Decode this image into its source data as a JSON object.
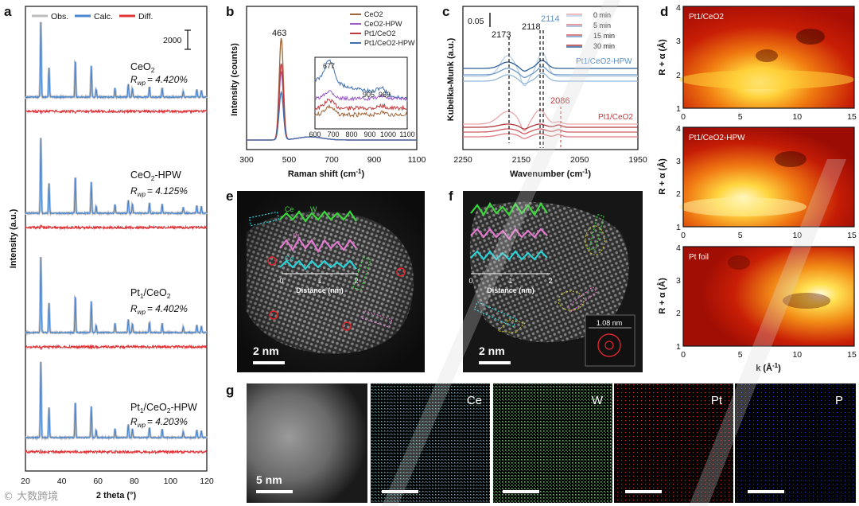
{
  "panels": {
    "a": {
      "label": "a",
      "legend": [
        "Obs.",
        "Calc.",
        "Diff."
      ],
      "scale": "2000",
      "ylabel": "Intensity (a.u.)",
      "xlabel": "2 theta (°)",
      "xticks": [
        "20",
        "40",
        "60",
        "80",
        "100",
        "120"
      ],
      "samples": [
        {
          "name": "CeO",
          "sub": "2",
          "tail": "",
          "rwp": "= 4.420%"
        },
        {
          "name": "CeO",
          "sub": "2",
          "tail": "-HPW",
          "rwp": "= 4.125%"
        },
        {
          "name": "Pt",
          "sub": "1",
          "tail": "/CeO",
          "sub2": "2",
          "rwp": "= 4.402%"
        },
        {
          "name": "Pt",
          "sub": "1",
          "tail": "/CeO",
          "sub2": "2",
          "tail2": "-HPW",
          "rwp": "= 4.203%"
        }
      ],
      "rwp_label": "R",
      "rwp_sub": "wp"
    },
    "b": {
      "label": "b",
      "xlabel": "Raman shift (cm",
      "ylabel": "Intensity (counts)",
      "peak": "463",
      "xticks": [
        "300",
        "500",
        "700",
        "900",
        "1100"
      ],
      "legend": [
        "CeO2",
        "CeO2-HPW",
        "Pt1/CeO2",
        "Pt1/CeO2-HPW"
      ],
      "inset_peaks": [
        "677",
        "905",
        "969"
      ],
      "inset_xticks": [
        "600",
        "700",
        "800",
        "900",
        "1000",
        "1100"
      ]
    },
    "c": {
      "label": "c",
      "ylabel": "Kubelka-Munk (a.u.)",
      "xlabel": "Wavenumber (cm",
      "scale": "0.05",
      "peaks": [
        "2173",
        "2118",
        "2114",
        "2086"
      ],
      "xticks": [
        "2250",
        "2150",
        "2050",
        "1950"
      ],
      "legend": [
        "0 min",
        "5 min",
        "15 min",
        "30 min"
      ],
      "s1": "Pt1/CeO2-HPW",
      "s2": "Pt1/CeO2"
    },
    "d": {
      "label": "d",
      "maps": [
        "Pt1/CeO2",
        "Pt1/CeO2-HPW",
        "Pt foil"
      ],
      "ylabel": "R + α (Å)",
      "xlabel": "k (Å",
      "xticks": [
        "0",
        "5",
        "10",
        "15"
      ],
      "yticks": [
        "1",
        "2",
        "3",
        "4"
      ]
    },
    "e": {
      "label": "e",
      "scale": "2 nm",
      "xlabel": "Distance (nm)",
      "xticks": [
        "0",
        "1",
        "2"
      ],
      "tags": [
        "Ce",
        "Pt",
        "W"
      ]
    },
    "f": {
      "label": "f",
      "scale": "2 nm",
      "xlabel": "Distance (nm)",
      "xticks": [
        "0",
        "1",
        "2"
      ],
      "size": "1.08 nm"
    },
    "g": {
      "label": "g",
      "scale": "5 nm",
      "maps": [
        {
          "name": "",
          "color": "#cfcfcf"
        },
        {
          "name": "Ce",
          "color": "#25c7d6"
        },
        {
          "name": "W",
          "color": "#36d83a"
        },
        {
          "name": "Pt",
          "color": "#e0252b"
        },
        {
          "name": "P",
          "color": "#2a38d8"
        }
      ]
    }
  },
  "watermark": "© 大数跨境"
}
